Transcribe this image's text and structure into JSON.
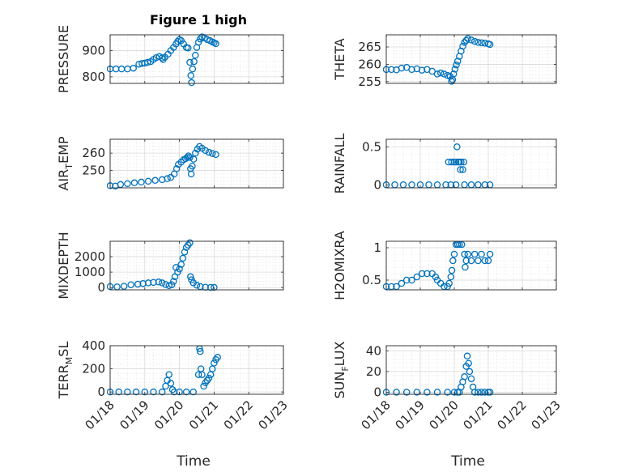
{
  "figure_title": "Figure 1 high",
  "chart_data": [
    {
      "type": "scatter",
      "title": "Figure 1 high",
      "xlabel": "",
      "ylabel": "PRESSURE",
      "xlim": [
        0,
        5
      ],
      "ylim": [
        775,
        960
      ],
      "yticks": [
        800,
        900
      ],
      "xtick_values": [
        0,
        1,
        2,
        3,
        4,
        5
      ],
      "xtick_labels": [
        "01/18",
        "01/19",
        "01/20",
        "01/21",
        "01/22",
        "01/23"
      ],
      "grid": true,
      "points": [
        [
          0.0,
          830
        ],
        [
          0.17,
          830
        ],
        [
          0.33,
          830
        ],
        [
          0.5,
          830
        ],
        [
          0.67,
          833
        ],
        [
          0.83,
          848
        ],
        [
          0.92,
          851
        ],
        [
          1.0,
          852
        ],
        [
          1.08,
          855
        ],
        [
          1.17,
          858
        ],
        [
          1.25,
          866
        ],
        [
          1.33,
          873
        ],
        [
          1.42,
          877
        ],
        [
          1.5,
          872
        ],
        [
          1.53,
          866
        ],
        [
          1.58,
          875
        ],
        [
          1.67,
          886
        ],
        [
          1.75,
          900
        ],
        [
          1.83,
          912
        ],
        [
          1.9,
          925
        ],
        [
          1.95,
          935
        ],
        [
          2.0,
          942
        ],
        [
          2.05,
          938
        ],
        [
          2.12,
          925
        ],
        [
          2.2,
          912
        ],
        [
          2.25,
          910
        ],
        [
          2.3,
          855
        ],
        [
          2.33,
          805
        ],
        [
          2.35,
          778
        ],
        [
          2.38,
          830
        ],
        [
          2.42,
          858
        ],
        [
          2.46,
          882
        ],
        [
          2.5,
          912
        ],
        [
          2.55,
          932
        ],
        [
          2.6,
          944
        ],
        [
          2.65,
          952
        ],
        [
          2.72,
          948
        ],
        [
          2.8,
          942
        ],
        [
          2.88,
          938
        ],
        [
          2.95,
          933
        ],
        [
          3.0,
          930
        ],
        [
          3.05,
          926
        ]
      ]
    },
    {
      "type": "scatter",
      "xlabel": "",
      "ylabel": "THETA",
      "xlim": [
        0,
        5
      ],
      "ylim": [
        254.5,
        268.5
      ],
      "yticks": [
        255,
        260,
        265
      ],
      "xtick_values": [
        0,
        1,
        2,
        3,
        4,
        5
      ],
      "xtick_labels": [
        "01/18",
        "01/19",
        "01/20",
        "01/21",
        "01/22",
        "01/23"
      ],
      "grid": true,
      "points": [
        [
          0.0,
          258.5
        ],
        [
          0.15,
          258.5
        ],
        [
          0.3,
          258.4
        ],
        [
          0.45,
          258.9
        ],
        [
          0.6,
          259.1
        ],
        [
          0.75,
          258.5
        ],
        [
          0.9,
          258.7
        ],
        [
          1.05,
          258.3
        ],
        [
          1.2,
          258.5
        ],
        [
          1.35,
          258.0
        ],
        [
          1.5,
          257.2
        ],
        [
          1.6,
          257.5
        ],
        [
          1.7,
          257.2
        ],
        [
          1.8,
          256.8
        ],
        [
          1.88,
          256.5
        ],
        [
          1.92,
          255.1
        ],
        [
          1.95,
          255.6
        ],
        [
          1.98,
          257.2
        ],
        [
          2.02,
          258.6
        ],
        [
          2.06,
          259.8
        ],
        [
          2.1,
          260.9
        ],
        [
          2.15,
          262.3
        ],
        [
          2.2,
          263.8
        ],
        [
          2.25,
          265.2
        ],
        [
          2.3,
          266.3
        ],
        [
          2.35,
          266.9
        ],
        [
          2.4,
          267.4
        ],
        [
          2.5,
          267.0
        ],
        [
          2.6,
          266.6
        ],
        [
          2.7,
          266.3
        ],
        [
          2.8,
          266.2
        ],
        [
          2.9,
          266.1
        ],
        [
          3.0,
          265.9
        ],
        [
          3.05,
          265.7
        ]
      ]
    },
    {
      "type": "scatter",
      "xlabel": "",
      "ylabel": "AIR_TEMP",
      "ylabel_main": "AIR",
      "ylabel_sub": "T",
      "ylabel_rest": "EMP",
      "xlim": [
        0,
        5
      ],
      "ylim": [
        240,
        268
      ],
      "yticks": [
        250,
        260
      ],
      "xtick_values": [
        0,
        1,
        2,
        3,
        4,
        5
      ],
      "xtick_labels": [
        "01/18",
        "01/19",
        "01/20",
        "01/21",
        "01/22",
        "01/23"
      ],
      "grid": true,
      "points": [
        [
          0.0,
          241.2
        ],
        [
          0.15,
          241.0
        ],
        [
          0.3,
          241.9
        ],
        [
          0.5,
          242.4
        ],
        [
          0.7,
          242.9
        ],
        [
          0.9,
          243.3
        ],
        [
          1.1,
          243.8
        ],
        [
          1.3,
          244.3
        ],
        [
          1.5,
          244.7
        ],
        [
          1.65,
          245.3
        ],
        [
          1.75,
          246.0
        ],
        [
          1.85,
          248.0
        ],
        [
          1.92,
          251.0
        ],
        [
          1.97,
          253.5
        ],
        [
          2.05,
          254.8
        ],
        [
          2.12,
          256.2
        ],
        [
          2.18,
          256.8
        ],
        [
          2.22,
          257.5
        ],
        [
          2.26,
          258.4
        ],
        [
          2.3,
          257.5
        ],
        [
          2.32,
          251.0
        ],
        [
          2.34,
          248.0
        ],
        [
          2.37,
          252.5
        ],
        [
          2.41,
          256.5
        ],
        [
          2.46,
          260.0
        ],
        [
          2.52,
          262.3
        ],
        [
          2.58,
          263.8
        ],
        [
          2.65,
          262.8
        ],
        [
          2.75,
          261.5
        ],
        [
          2.85,
          260.5
        ],
        [
          2.95,
          259.8
        ],
        [
          3.05,
          259.2
        ]
      ]
    },
    {
      "type": "scatter",
      "xlabel": "",
      "ylabel": "RAINFALL",
      "xlim": [
        0,
        5
      ],
      "ylim": [
        -0.04,
        0.6
      ],
      "yticks": [
        0,
        0.5
      ],
      "xtick_values": [
        0,
        1,
        2,
        3,
        4,
        5
      ],
      "xtick_labels": [
        "01/18",
        "01/19",
        "01/20",
        "01/21",
        "01/22",
        "01/23"
      ],
      "grid": true,
      "points": [
        [
          0.0,
          0
        ],
        [
          0.25,
          0
        ],
        [
          0.5,
          0
        ],
        [
          0.75,
          0
        ],
        [
          1.0,
          0
        ],
        [
          1.25,
          0
        ],
        [
          1.5,
          0
        ],
        [
          1.75,
          0
        ],
        [
          1.9,
          0
        ],
        [
          1.83,
          0.3
        ],
        [
          1.92,
          0.3
        ],
        [
          2.0,
          0.3
        ],
        [
          2.05,
          0.3
        ],
        [
          2.08,
          0.5
        ],
        [
          2.12,
          0.3
        ],
        [
          2.15,
          0.3
        ],
        [
          2.18,
          0.2
        ],
        [
          2.25,
          0.2
        ],
        [
          2.2,
          0.3
        ],
        [
          2.28,
          0.3
        ],
        [
          2.05,
          0
        ],
        [
          2.3,
          0
        ],
        [
          2.5,
          0
        ],
        [
          2.7,
          0
        ],
        [
          2.9,
          0
        ],
        [
          3.05,
          0
        ]
      ]
    },
    {
      "type": "scatter",
      "xlabel": "",
      "ylabel": "MIXDEPTH",
      "xlim": [
        0,
        5
      ],
      "ylim": [
        -150,
        3000
      ],
      "yticks": [
        0,
        1000,
        2000
      ],
      "xtick_values": [
        0,
        1,
        2,
        3,
        4,
        5
      ],
      "xtick_labels": [
        "01/18",
        "01/19",
        "01/20",
        "01/21",
        "01/22",
        "01/23"
      ],
      "grid": true,
      "points": [
        [
          0.0,
          60
        ],
        [
          0.2,
          40
        ],
        [
          0.4,
          80
        ],
        [
          0.6,
          180
        ],
        [
          0.8,
          220
        ],
        [
          0.95,
          260
        ],
        [
          1.1,
          300
        ],
        [
          1.25,
          330
        ],
        [
          1.4,
          360
        ],
        [
          1.5,
          300
        ],
        [
          1.6,
          200
        ],
        [
          1.7,
          120
        ],
        [
          1.78,
          180
        ],
        [
          1.83,
          400
        ],
        [
          1.87,
          700
        ],
        [
          1.9,
          1300
        ],
        [
          1.95,
          1000
        ],
        [
          2.0,
          1200
        ],
        [
          2.05,
          1500
        ],
        [
          2.1,
          1900
        ],
        [
          2.15,
          2300
        ],
        [
          2.2,
          2600
        ],
        [
          2.25,
          2750
        ],
        [
          2.3,
          2900
        ],
        [
          2.32,
          700
        ],
        [
          2.35,
          500
        ],
        [
          2.4,
          300
        ],
        [
          2.5,
          150
        ],
        [
          2.6,
          60
        ],
        [
          2.75,
          20
        ],
        [
          2.9,
          10
        ],
        [
          3.0,
          5
        ]
      ]
    },
    {
      "type": "scatter",
      "xlabel": "",
      "ylabel": "H2OMIXRA",
      "xlim": [
        0,
        5
      ],
      "ylim": [
        0.35,
        1.1
      ],
      "yticks": [
        0.5,
        1
      ],
      "xtick_values": [
        0,
        1,
        2,
        3,
        4,
        5
      ],
      "xtick_labels": [
        "01/18",
        "01/19",
        "01/20",
        "01/21",
        "01/22",
        "01/23"
      ],
      "grid": true,
      "points": [
        [
          0.0,
          0.4
        ],
        [
          0.15,
          0.4
        ],
        [
          0.3,
          0.4
        ],
        [
          0.45,
          0.45
        ],
        [
          0.6,
          0.5
        ],
        [
          0.75,
          0.5
        ],
        [
          0.9,
          0.55
        ],
        [
          1.05,
          0.6
        ],
        [
          1.2,
          0.6
        ],
        [
          1.35,
          0.6
        ],
        [
          1.45,
          0.55
        ],
        [
          1.5,
          0.5
        ],
        [
          1.6,
          0.45
        ],
        [
          1.7,
          0.4
        ],
        [
          1.8,
          0.4
        ],
        [
          1.85,
          0.45
        ],
        [
          1.9,
          0.55
        ],
        [
          1.93,
          0.65
        ],
        [
          1.96,
          0.8
        ],
        [
          2.0,
          0.9
        ],
        [
          2.05,
          1.05
        ],
        [
          2.1,
          1.05
        ],
        [
          2.15,
          1.05
        ],
        [
          2.22,
          1.05
        ],
        [
          2.3,
          0.9
        ],
        [
          2.32,
          0.7
        ],
        [
          2.35,
          0.8
        ],
        [
          2.4,
          0.9
        ],
        [
          2.5,
          0.8
        ],
        [
          2.6,
          0.9
        ],
        [
          2.7,
          0.8
        ],
        [
          2.8,
          0.9
        ],
        [
          2.9,
          0.8
        ],
        [
          3.0,
          0.8
        ],
        [
          3.05,
          0.9
        ]
      ]
    },
    {
      "type": "scatter",
      "xlabel": "Time",
      "ylabel": "TERR_MSL",
      "ylabel_main": "TERR",
      "ylabel_sub": "M",
      "ylabel_rest": "SL",
      "xlim": [
        0,
        5
      ],
      "ylim": [
        -20,
        400
      ],
      "yticks": [
        0,
        200,
        400
      ],
      "xtick_values": [
        0,
        1,
        2,
        3,
        4,
        5
      ],
      "xtick_labels": [
        "01/18",
        "01/19",
        "01/20",
        "01/21",
        "01/22",
        "01/23"
      ],
      "grid": true,
      "points": [
        [
          0.0,
          0
        ],
        [
          0.25,
          0
        ],
        [
          0.5,
          0
        ],
        [
          0.75,
          0
        ],
        [
          1.0,
          0
        ],
        [
          1.25,
          0
        ],
        [
          1.5,
          0
        ],
        [
          1.6,
          50
        ],
        [
          1.65,
          100
        ],
        [
          1.7,
          150
        ],
        [
          1.75,
          75
        ],
        [
          1.8,
          20
        ],
        [
          1.85,
          0
        ],
        [
          2.0,
          0
        ],
        [
          2.2,
          0
        ],
        [
          2.4,
          0
        ],
        [
          2.55,
          150
        ],
        [
          2.58,
          375
        ],
        [
          2.6,
          350
        ],
        [
          2.62,
          200
        ],
        [
          2.65,
          150
        ],
        [
          2.7,
          50
        ],
        [
          2.75,
          80
        ],
        [
          2.8,
          100
        ],
        [
          2.85,
          120
        ],
        [
          2.9,
          150
        ],
        [
          2.95,
          200
        ],
        [
          3.0,
          250
        ],
        [
          3.05,
          280
        ],
        [
          3.1,
          300
        ]
      ]
    },
    {
      "type": "scatter",
      "xlabel": "Time",
      "ylabel": "SUN_FLUX",
      "ylabel_main": "SUN",
      "ylabel_sub": "F",
      "ylabel_rest": "LUX",
      "xlim": [
        0,
        5
      ],
      "ylim": [
        -2,
        45
      ],
      "yticks": [
        0,
        20,
        40
      ],
      "xtick_values": [
        0,
        1,
        2,
        3,
        4,
        5
      ],
      "xtick_labels": [
        "01/18",
        "01/19",
        "01/20",
        "01/21",
        "01/22",
        "01/23"
      ],
      "grid": true,
      "points": [
        [
          0.0,
          0
        ],
        [
          0.3,
          0
        ],
        [
          0.6,
          0
        ],
        [
          0.9,
          0
        ],
        [
          1.2,
          0
        ],
        [
          1.5,
          0
        ],
        [
          1.8,
          0
        ],
        [
          2.0,
          0
        ],
        [
          2.1,
          0
        ],
        [
          2.15,
          0
        ],
        [
          2.2,
          5
        ],
        [
          2.25,
          10
        ],
        [
          2.3,
          15
        ],
        [
          2.35,
          25
        ],
        [
          2.38,
          35
        ],
        [
          2.42,
          28
        ],
        [
          2.45,
          20
        ],
        [
          2.5,
          13
        ],
        [
          2.55,
          5
        ],
        [
          2.6,
          0
        ],
        [
          2.7,
          0
        ],
        [
          2.8,
          0
        ],
        [
          2.9,
          0
        ],
        [
          3.0,
          0
        ],
        [
          3.05,
          0
        ]
      ]
    }
  ]
}
